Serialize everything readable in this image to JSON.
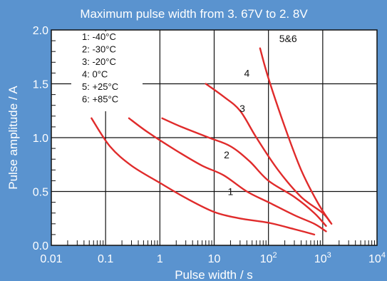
{
  "chart_data": {
    "type": "line",
    "title": "Maximum pulse width from 3. 67V to 2. 8V",
    "xlabel": "Pulse width / s",
    "ylabel": "Pulse amplitude / A",
    "x_scale": "log",
    "xlim": [
      0.01,
      10000
    ],
    "ylim": [
      0.0,
      2.0
    ],
    "x_ticks": [
      {
        "value": 0.01,
        "label": "0.01",
        "sup": ""
      },
      {
        "value": 0.1,
        "label": "0.1",
        "sup": ""
      },
      {
        "value": 1,
        "label": "1",
        "sup": ""
      },
      {
        "value": 10,
        "label": "10",
        "sup": ""
      },
      {
        "value": 100,
        "label": "10",
        "sup": "2"
      },
      {
        "value": 1000,
        "label": "10",
        "sup": "3"
      },
      {
        "value": 10000,
        "label": "10",
        "sup": "4"
      }
    ],
    "y_ticks": [
      {
        "value": 0.0,
        "label": "0.0"
      },
      {
        "value": 0.5,
        "label": "0.5"
      },
      {
        "value": 1.0,
        "label": "1.0"
      },
      {
        "value": 1.5,
        "label": "1.5"
      },
      {
        "value": 2.0,
        "label": "2.0"
      }
    ],
    "grid": true,
    "legend_position": "top-left",
    "legend": [
      "1: -40°C",
      "2: -30°C",
      "3: -20°C",
      "4: 0°C",
      "5: +25°C",
      "6: +85°C"
    ],
    "curve_color": "#e02b2b",
    "series": [
      {
        "label": "1",
        "label_at": [
          20,
          0.5
        ],
        "points": [
          [
            0.055,
            1.18
          ],
          [
            0.12,
            0.92
          ],
          [
            0.3,
            0.74
          ],
          [
            1,
            0.58
          ],
          [
            3,
            0.44
          ],
          [
            10,
            0.31
          ],
          [
            30,
            0.25
          ],
          [
            100,
            0.21
          ],
          [
            300,
            0.15
          ],
          [
            700,
            0.1
          ]
        ]
      },
      {
        "label": "2",
        "label_at": [
          17,
          0.84
        ],
        "points": [
          [
            0.27,
            1.18
          ],
          [
            0.6,
            1.05
          ],
          [
            2,
            0.88
          ],
          [
            6,
            0.74
          ],
          [
            15,
            0.65
          ],
          [
            40,
            0.5
          ],
          [
            100,
            0.4
          ],
          [
            300,
            0.28
          ],
          [
            700,
            0.2
          ],
          [
            1150,
            0.13
          ]
        ]
      },
      {
        "label": "3",
        "label_at": [
          33,
          1.27
        ],
        "points": [
          [
            1.1,
            1.18
          ],
          [
            2.5,
            1.1
          ],
          [
            8,
            1.0
          ],
          [
            20,
            0.92
          ],
          [
            45,
            0.78
          ],
          [
            100,
            0.6
          ],
          [
            300,
            0.45
          ],
          [
            700,
            0.3
          ],
          [
            1150,
            0.18
          ]
        ]
      },
      {
        "label": "4",
        "label_at": [
          40,
          1.6
        ],
        "points": [
          [
            7,
            1.5
          ],
          [
            15,
            1.38
          ],
          [
            30,
            1.25
          ],
          [
            60,
            1.0
          ],
          [
            150,
            0.7
          ],
          [
            400,
            0.45
          ],
          [
            1000,
            0.3
          ],
          [
            1450,
            0.2
          ]
        ]
      },
      {
        "label": "5&6",
        "label_at": [
          230,
          1.92
        ],
        "points": [
          [
            70,
            1.83
          ],
          [
            100,
            1.55
          ],
          [
            200,
            1.1
          ],
          [
            400,
            0.7
          ],
          [
            800,
            0.4
          ],
          [
            1350,
            0.22
          ]
        ]
      }
    ]
  }
}
